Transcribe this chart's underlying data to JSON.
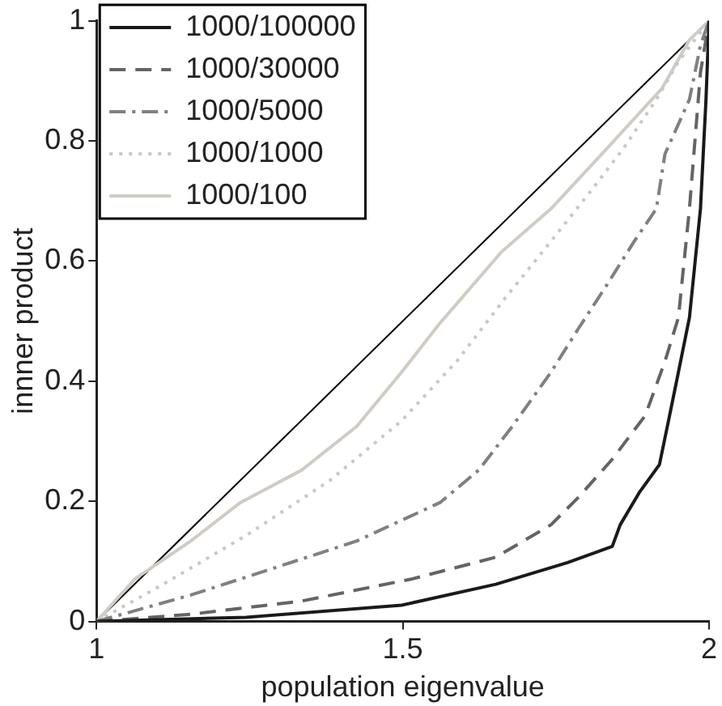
{
  "chart_data": {
    "type": "line",
    "xlabel": "population eigenvalue",
    "ylabel": "innner product",
    "xlim": [
      1,
      2
    ],
    "ylim": [
      0,
      1
    ],
    "xticks": [
      1,
      1.5,
      2
    ],
    "yticks": [
      0,
      0.2,
      0.4,
      0.6,
      0.8,
      1
    ],
    "grid": false,
    "legend": "top left",
    "marker": "none",
    "series": [
      {
        "name": "1000/100000",
        "color": "#1a1a1a",
        "line_style": "solid",
        "x": [
          1,
          1.244,
          1.498,
          1.652,
          1.769,
          1.842,
          1.855,
          1.887,
          1.919,
          1.932,
          1.95,
          1.968,
          1.986,
          1.995,
          2
        ],
        "values": [
          0,
          0.007,
          0.027,
          0.062,
          0.098,
          0.125,
          0.161,
          0.216,
          0.261,
          0.325,
          0.415,
          0.506,
          0.687,
          0.869,
          1
        ]
      },
      {
        "name": "1000/30000",
        "color": "#646464",
        "line_style": "dashed",
        "x": [
          1,
          1.154,
          1.335,
          1.516,
          1.652,
          1.742,
          1.787,
          1.842,
          1.896,
          1.928,
          1.95,
          1.968,
          1.986,
          2
        ],
        "values": [
          0,
          0.012,
          0.034,
          0.071,
          0.107,
          0.161,
          0.207,
          0.27,
          0.343,
          0.433,
          0.506,
          0.687,
          0.914,
          1
        ]
      },
      {
        "name": "1000/5000",
        "color": "#808080",
        "line_style": "dashdot",
        "x": [
          1,
          1.154,
          1.29,
          1.425,
          1.561,
          1.624,
          1.679,
          1.742,
          1.787,
          1.833,
          1.878,
          1.914,
          1.928,
          1.968,
          1.986,
          2
        ],
        "values": [
          0,
          0.044,
          0.089,
          0.134,
          0.198,
          0.252,
          0.325,
          0.415,
          0.488,
          0.56,
          0.633,
          0.687,
          0.778,
          0.869,
          0.959,
          1
        ]
      },
      {
        "name": "1000/1000",
        "color": "#c8c8c8",
        "line_style": "dotted",
        "x": [
          1,
          1.109,
          1.244,
          1.38,
          1.498,
          1.588,
          1.67,
          1.742,
          1.805,
          1.86,
          1.914,
          1.95,
          2
        ],
        "values": [
          0,
          0.062,
          0.143,
          0.234,
          0.334,
          0.433,
          0.542,
          0.633,
          0.714,
          0.787,
          0.869,
          0.932,
          1
        ]
      },
      {
        "name": "1000/100",
        "color": "#d0ccc4",
        "line_style": "solid",
        "x": [
          1,
          1.063,
          1.154,
          1.235,
          1.335,
          1.425,
          1.498,
          1.561,
          1.661,
          1.742,
          1.833,
          1.923,
          1.968,
          2
        ],
        "values": [
          0,
          0.071,
          0.134,
          0.198,
          0.252,
          0.325,
          0.415,
          0.497,
          0.615,
          0.687,
          0.787,
          0.887,
          0.968,
          1
        ]
      },
      {
        "color": "#000000",
        "line_style": "solid",
        "x": [
          1,
          2
        ],
        "values": [
          0,
          1
        ]
      }
    ]
  }
}
